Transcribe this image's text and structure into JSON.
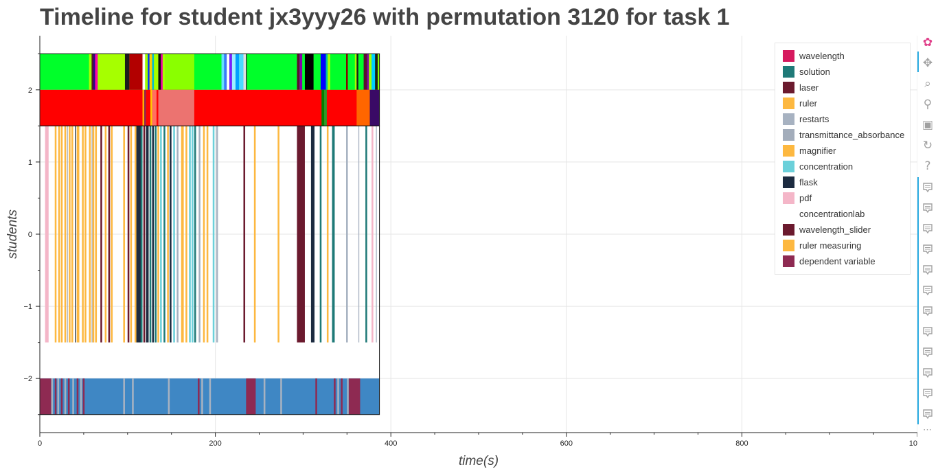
{
  "title": "Timeline for student jx3yyy26 with permutation 3120 for task 1",
  "chart_data": {
    "type": "bar",
    "xlabel": "time(s)",
    "ylabel": "students",
    "xlim": [
      0,
      1000
    ],
    "ylim": [
      -2.75,
      2.75
    ],
    "x_ticks": [
      0,
      200,
      400,
      600,
      800,
      1000
    ],
    "y_ticks": [
      -2,
      -1,
      0,
      1,
      2
    ],
    "x_tick_labels": [
      "0",
      "200",
      "400",
      "600",
      "800",
      "1000"
    ],
    "y_tick_labels": [
      "−2",
      "−1",
      "0",
      "1",
      "2"
    ],
    "grid": true,
    "legend_position": "top-right",
    "legend": [
      {
        "label": "wavelength",
        "color": "#d6195e"
      },
      {
        "label": "solution",
        "color": "#1f7a78"
      },
      {
        "label": "laser",
        "color": "#6b1a2e"
      },
      {
        "label": "ruler",
        "color": "#fdb840"
      },
      {
        "label": "restarts",
        "color": "#a7b2c1"
      },
      {
        "label": "transmittance_absorbance",
        "color": "#a3adbb"
      },
      {
        "label": "magnifier",
        "color": "#fdb840"
      },
      {
        "label": "concentration",
        "color": "#6bd0da"
      },
      {
        "label": "flask",
        "color": "#1c2b40"
      },
      {
        "label": "pdf",
        "color": "#f4b6c8"
      },
      {
        "label": "concentrationlab",
        "color": "#ffffff"
      },
      {
        "label": "wavelength_slider",
        "color": "#6b1a2e"
      },
      {
        "label": "ruler measuring",
        "color": "#fdb840"
      },
      {
        "label": "dependent variable",
        "color": "#8e2a52"
      }
    ],
    "series": [
      {
        "y_range": [
          2.0,
          2.5
        ],
        "base_color": "#00ff2a",
        "segments": [
          [
            56,
            59,
            "#a6ff00"
          ],
          [
            59,
            61,
            "#5a1030"
          ],
          [
            61,
            63,
            "#2a0a80"
          ],
          [
            63,
            66,
            "#ff00aa"
          ],
          [
            66,
            97,
            "#a6ff00"
          ],
          [
            97,
            102,
            "#1b1b1b"
          ],
          [
            102,
            117,
            "#b20000"
          ],
          [
            117,
            120,
            "#ffffff"
          ],
          [
            120,
            123,
            "#a6ff00"
          ],
          [
            123,
            125,
            "#0033ff"
          ],
          [
            125,
            128,
            "#ffcc00"
          ],
          [
            128,
            130,
            "#00bcd4"
          ],
          [
            130,
            135,
            "#a6ff00"
          ],
          [
            135,
            138,
            "#0d0d0d"
          ],
          [
            138,
            140,
            "#ff00aa"
          ],
          [
            140,
            143,
            "#a6ff00"
          ],
          [
            143,
            176,
            "#8aff00"
          ],
          [
            207,
            210,
            "#66e0ff"
          ],
          [
            210,
            213,
            "#3a78ff"
          ],
          [
            213,
            216,
            "#ffffff"
          ],
          [
            216,
            219,
            "#7a1cff"
          ],
          [
            219,
            223,
            "#9ef0ff"
          ],
          [
            223,
            227,
            "#00a0ff"
          ],
          [
            227,
            232,
            "#4dd9ff"
          ],
          [
            232,
            235,
            "#e0e0e0"
          ],
          [
            235,
            236,
            "#1b1b1b"
          ],
          [
            293,
            296,
            "#5a1030"
          ],
          [
            296,
            299,
            "#8800aa"
          ],
          [
            302,
            312,
            "#000000"
          ],
          [
            312,
            320,
            "#00ff2a"
          ],
          [
            320,
            326,
            "#0000ff"
          ],
          [
            326,
            328,
            "#00bfa0"
          ],
          [
            328,
            331,
            "#a6ff00"
          ],
          [
            331,
            349,
            "#00ff2a"
          ],
          [
            349,
            351,
            "#8b0000"
          ],
          [
            351,
            359,
            "#00ff2a"
          ],
          [
            359,
            361,
            "#a6ff00"
          ],
          [
            361,
            363,
            "#1b1b1b"
          ],
          [
            363,
            369,
            "#00ff2a"
          ],
          [
            369,
            373,
            "#5a1030"
          ],
          [
            373,
            375,
            "#8800aa"
          ],
          [
            375,
            378,
            "#a6ff00"
          ],
          [
            378,
            382,
            "#00cfff"
          ],
          [
            382,
            385,
            "#1b1b1b"
          ],
          [
            385,
            387,
            "#8aff00"
          ]
        ]
      },
      {
        "y_range": [
          1.5,
          2.0
        ],
        "base_color": "#ff0000",
        "segments": [
          [
            117,
            119,
            "#ffb300"
          ],
          [
            119,
            121,
            "#8e2a52"
          ],
          [
            126,
            128,
            "#ffcc00"
          ],
          [
            128,
            133,
            "#ff7060"
          ],
          [
            135,
            176,
            "#ec7370"
          ],
          [
            321,
            324,
            "#008000"
          ],
          [
            324,
            327,
            "#2a9d2a"
          ],
          [
            361,
            376,
            "#ff6600"
          ],
          [
            376,
            387,
            "#3a0a66"
          ]
        ]
      },
      {
        "y_range": [
          -1.5,
          1.5
        ],
        "base_color": "#ffffff",
        "segments": [
          [
            6,
            10,
            "#f4b6c8"
          ],
          [
            17,
            19,
            "#fdb840"
          ],
          [
            21,
            23,
            "#fdb840"
          ],
          [
            24,
            26,
            "#fdb840"
          ],
          [
            28,
            30,
            "#fdb840"
          ],
          [
            31,
            32,
            "#a7b2c1"
          ],
          [
            33,
            35,
            "#fdb840"
          ],
          [
            36,
            38,
            "#fdb840"
          ],
          [
            40,
            41,
            "#1c2b40"
          ],
          [
            42,
            45,
            "#fdb840"
          ],
          [
            48,
            50,
            "#fdb840"
          ],
          [
            51,
            53,
            "#fdb840"
          ],
          [
            56,
            58,
            "#fdb840"
          ],
          [
            59,
            60,
            "#a7b2c1"
          ],
          [
            60,
            62,
            "#fdb840"
          ],
          [
            63,
            65,
            "#fdb840"
          ],
          [
            69,
            71,
            "#6b1a2e"
          ],
          [
            74,
            76,
            "#fdb840"
          ],
          [
            78,
            80,
            "#6b1a2e"
          ],
          [
            81,
            83,
            "#fdb840"
          ],
          [
            95,
            97,
            "#fdb840"
          ],
          [
            100,
            102,
            "#6b1a2e"
          ],
          [
            103,
            105,
            "#fdb840"
          ],
          [
            108,
            110,
            "#fdb840"
          ],
          [
            110,
            115,
            "#1c2b40"
          ],
          [
            115,
            117,
            "#1f7a78"
          ],
          [
            118,
            120,
            "#6b1a2e"
          ],
          [
            121,
            124,
            "#1c2b40"
          ],
          [
            125,
            127,
            "#1f7a78"
          ],
          [
            128,
            130,
            "#1c2b40"
          ],
          [
            131,
            133,
            "#1f7a78"
          ],
          [
            134,
            136,
            "#fdb840"
          ],
          [
            137,
            139,
            "#6bd0da"
          ],
          [
            141,
            143,
            "#1f7a78"
          ],
          [
            145,
            147,
            "#fdb840"
          ],
          [
            148,
            150,
            "#1c2b40"
          ],
          [
            152,
            154,
            "#6bd0da"
          ],
          [
            156,
            158,
            "#a7b2c1"
          ],
          [
            161,
            164,
            "#fdb840"
          ],
          [
            166,
            168,
            "#fdb840"
          ],
          [
            170,
            172,
            "#6bd0da"
          ],
          [
            173,
            175,
            "#6bd0da"
          ],
          [
            176,
            178,
            "#1f7a78"
          ],
          [
            181,
            183,
            "#a7b2c1"
          ],
          [
            186,
            188,
            "#fdb840"
          ],
          [
            190,
            192,
            "#fdb840"
          ],
          [
            197,
            199,
            "#6bd0da"
          ],
          [
            201,
            203,
            "#a7b2c1"
          ],
          [
            232,
            234,
            "#6b1a2e"
          ],
          [
            244,
            246,
            "#fdb840"
          ],
          [
            271,
            273,
            "#fdb840"
          ],
          [
            293,
            302,
            "#6b1a2e"
          ],
          [
            309,
            313,
            "#1c2b40"
          ],
          [
            319,
            321,
            "#1f7a78"
          ],
          [
            327,
            329,
            "#fdb840"
          ],
          [
            333,
            336,
            "#1f7a78"
          ],
          [
            349,
            351,
            "#a7b2c1"
          ],
          [
            363,
            364,
            "#a7b2c1"
          ],
          [
            371,
            373,
            "#1f7a78"
          ],
          [
            378,
            380,
            "#f4b6c8"
          ],
          [
            383,
            384,
            "#a7b2c1"
          ]
        ]
      },
      {
        "y_range": [
          -2.5,
          -2.0
        ],
        "base_color": "#3f87c4",
        "segments": [
          [
            0,
            13,
            "#8e2a52"
          ],
          [
            13,
            15,
            "#a7b2c1"
          ],
          [
            17,
            19,
            "#8e2a52"
          ],
          [
            20,
            22,
            "#a7b2c1"
          ],
          [
            24,
            26,
            "#8e2a52"
          ],
          [
            28,
            30,
            "#a7b2c1"
          ],
          [
            32,
            34,
            "#8e2a52"
          ],
          [
            37,
            39,
            "#a7b2c1"
          ],
          [
            42,
            44,
            "#8e2a52"
          ],
          [
            46,
            48,
            "#a7b2c1"
          ],
          [
            49,
            51,
            "#8e2a52"
          ],
          [
            95,
            97,
            "#a7b2c1"
          ],
          [
            105,
            107,
            "#a7b2c1"
          ],
          [
            146,
            148,
            "#a7b2c1"
          ],
          [
            180,
            182,
            "#8e2a52"
          ],
          [
            184,
            186,
            "#a7b2c1"
          ],
          [
            193,
            195,
            "#a7b2c1"
          ],
          [
            235,
            246,
            "#8e2a52"
          ],
          [
            255,
            257,
            "#a7b2c1"
          ],
          [
            274,
            276,
            "#a7b2c1"
          ],
          [
            314,
            316,
            "#8e2a52"
          ],
          [
            335,
            337,
            "#8e2a52"
          ],
          [
            339,
            341,
            "#a7b2c1"
          ],
          [
            343,
            345,
            "#8e2a52"
          ],
          [
            350,
            352,
            "#a7b2c1"
          ],
          [
            352,
            365,
            "#8e2a52"
          ]
        ]
      }
    ],
    "row_outlines": [
      [
        1.5,
        2.5
      ],
      [
        -2.5,
        1.5
      ]
    ],
    "end_time": 387
  },
  "toolbar": [
    {
      "name": "bokeh-logo-icon",
      "glyph": "✿"
    },
    {
      "name": "pan-tool-icon",
      "glyph": "✥"
    },
    {
      "name": "box-zoom-tool-icon",
      "glyph": "⌕"
    },
    {
      "name": "wheel-zoom-tool-icon",
      "glyph": "⚲"
    },
    {
      "name": "save-tool-icon",
      "glyph": "▣"
    },
    {
      "name": "reset-tool-icon",
      "glyph": "↻"
    },
    {
      "name": "help-tool-icon",
      "glyph": "?"
    }
  ],
  "hover_tool_count": 12
}
